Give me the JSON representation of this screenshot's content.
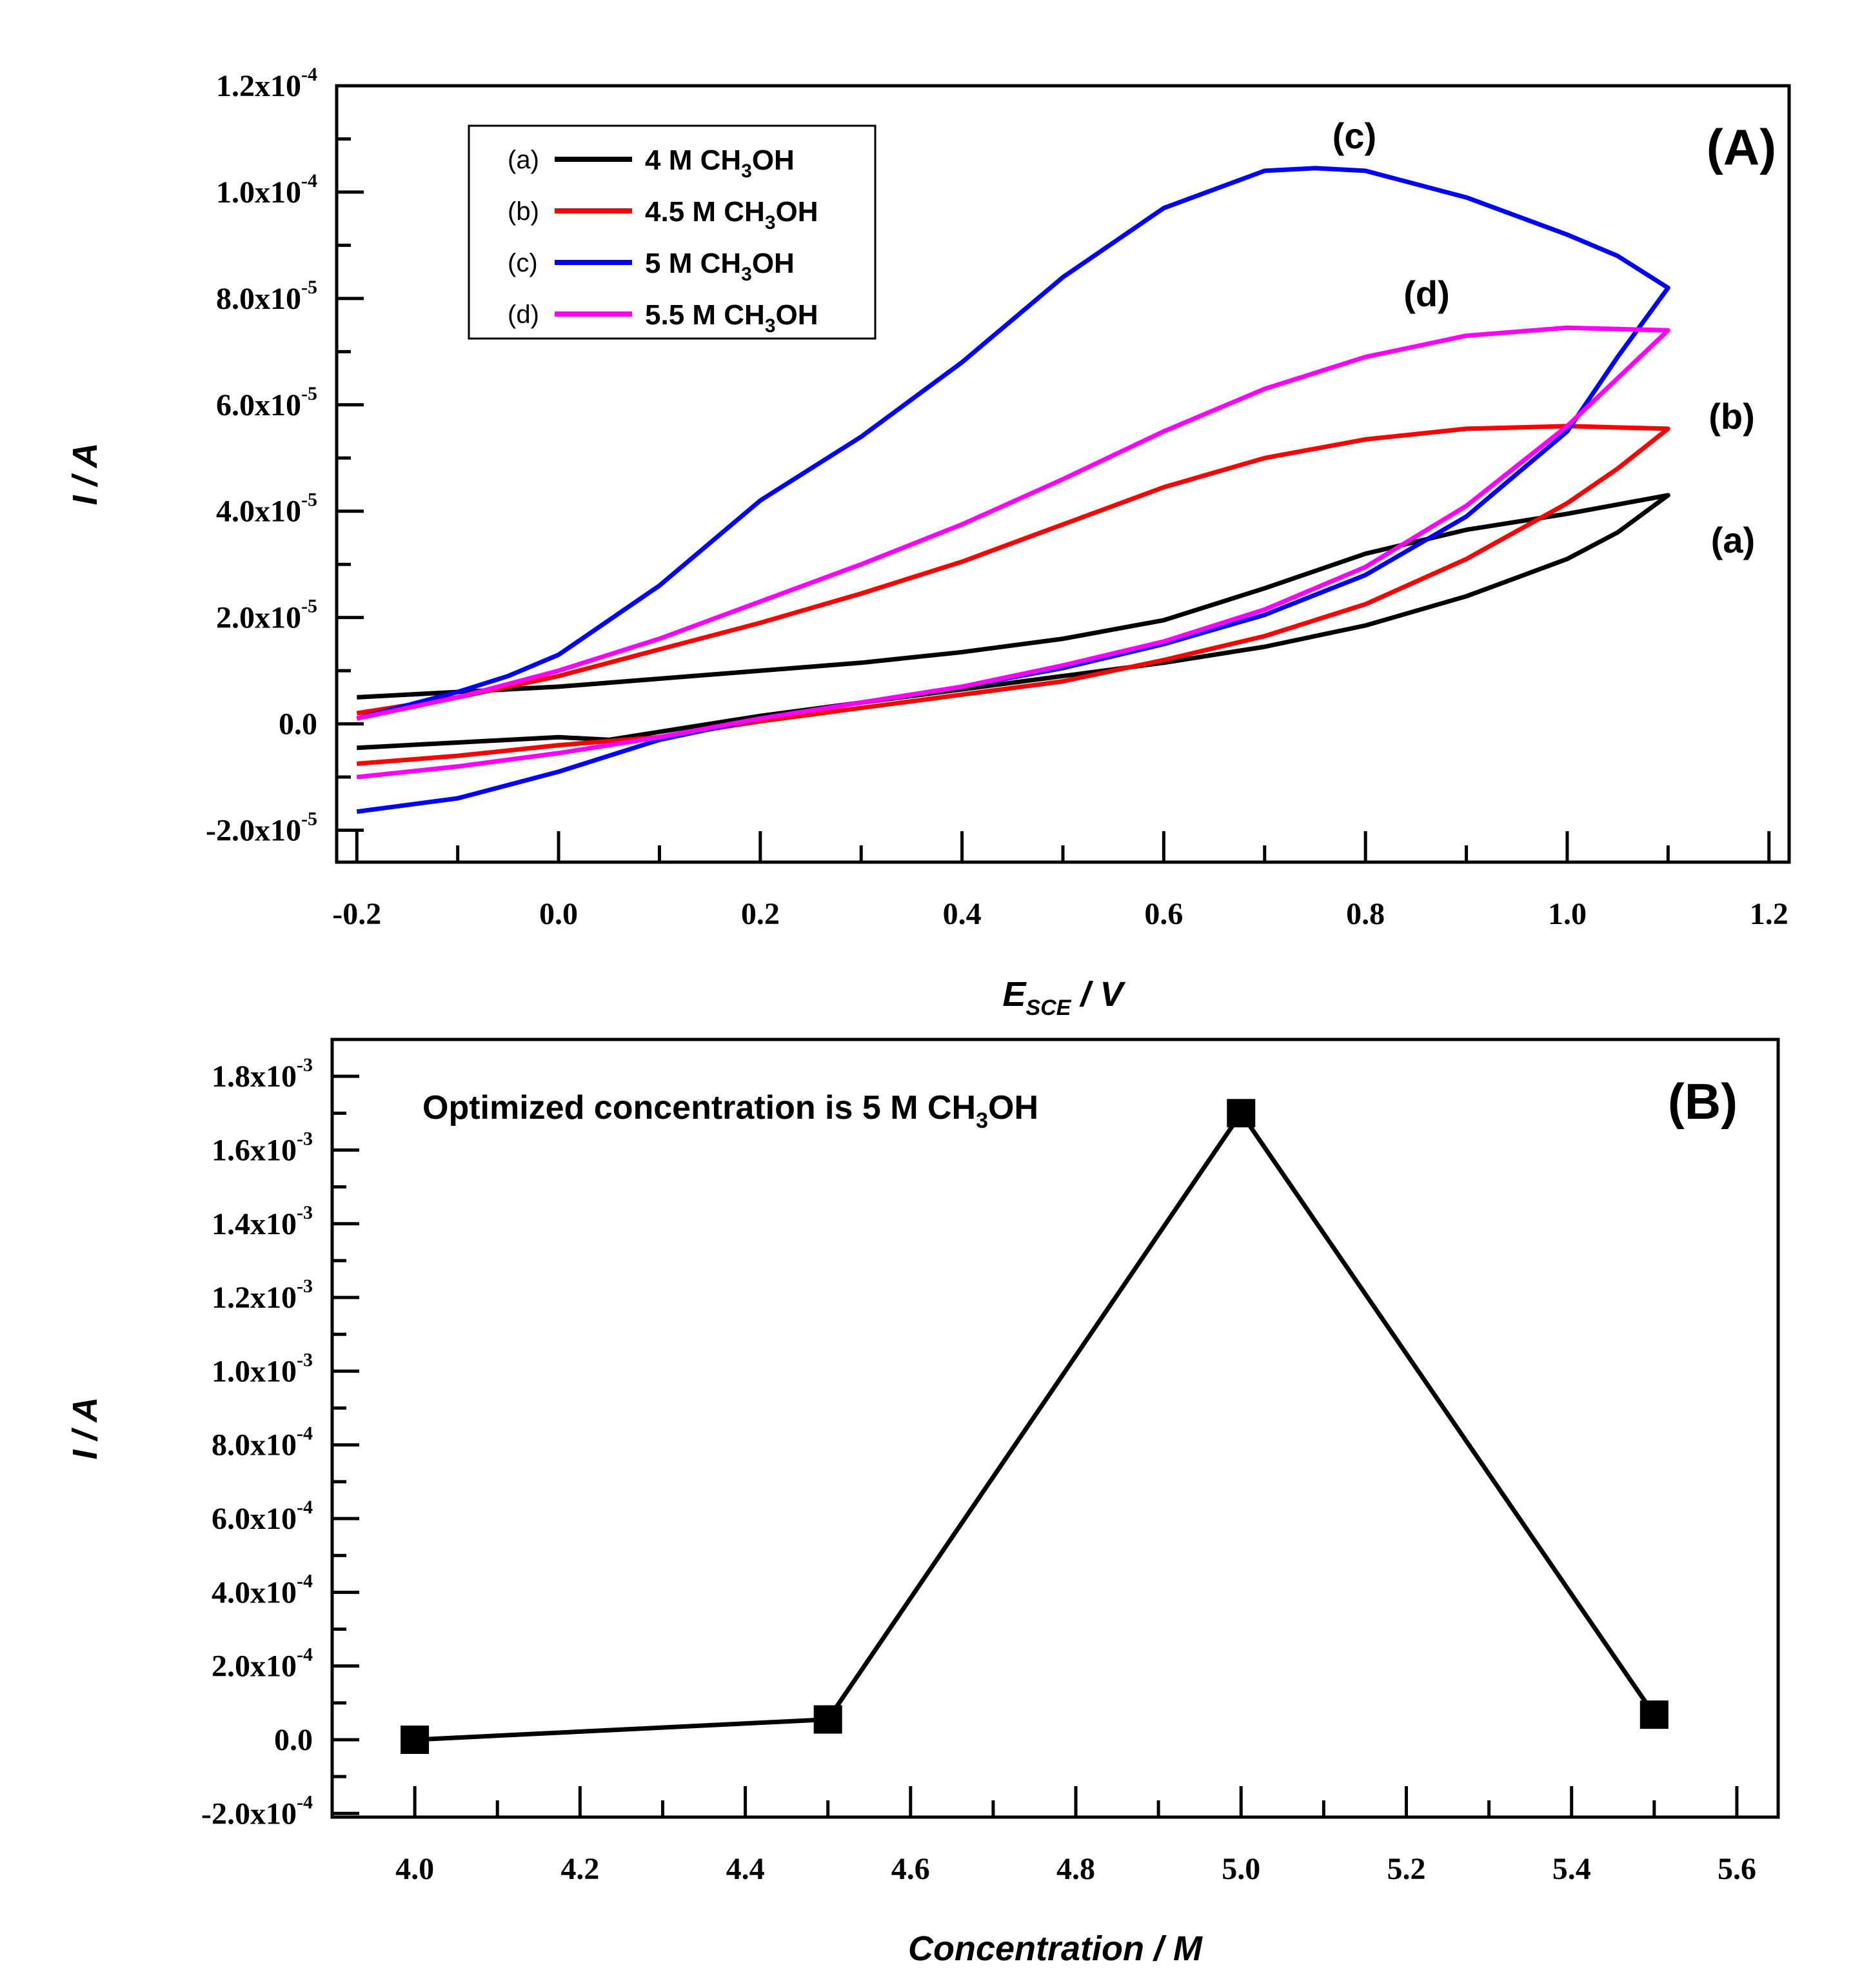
{
  "chart_data": [
    {
      "panel": "A",
      "type": "line",
      "panel_label": "(A)",
      "xlabel": {
        "main": "E",
        "sub": "SCE",
        "rest": " / V"
      },
      "ylabel": "I / A",
      "xlim": [
        -0.22,
        1.22
      ],
      "ylim": [
        -2.6e-05,
        0.00012
      ],
      "x_ticks": [
        {
          "v": -0.2,
          "label": "-0.2"
        },
        {
          "v": 0.0,
          "label": "0.0"
        },
        {
          "v": 0.2,
          "label": "0.2"
        },
        {
          "v": 0.4,
          "label": "0.4"
        },
        {
          "v": 0.6,
          "label": "0.6"
        },
        {
          "v": 0.8,
          "label": "0.8"
        },
        {
          "v": 1.0,
          "label": "1.0"
        },
        {
          "v": 1.2,
          "label": "1.2"
        }
      ],
      "y_ticks": [
        {
          "v": -2e-05,
          "mant": "-2.0x10",
          "exp": "-5"
        },
        {
          "v": 0,
          "mant": "0.0",
          "exp": ""
        },
        {
          "v": 2e-05,
          "mant": "2.0x10",
          "exp": "-5"
        },
        {
          "v": 4e-05,
          "mant": "4.0x10",
          "exp": "-5"
        },
        {
          "v": 6e-05,
          "mant": "6.0x10",
          "exp": "-5"
        },
        {
          "v": 8e-05,
          "mant": "8.0x10",
          "exp": "-5"
        },
        {
          "v": 0.0001,
          "mant": "1.0x10",
          "exp": "-4"
        },
        {
          "v": 0.00012,
          "mant": "1.2x10",
          "exp": "-4"
        }
      ],
      "series": [
        {
          "key": "(a)",
          "name_pre": "4  M CH",
          "name_sub": "3",
          "name_post": "OH",
          "color": "#000000",
          "curve_label": "(a)",
          "forward": [
            [
              -0.2,
              5e-06
            ],
            [
              -0.1,
              6e-06
            ],
            [
              0.0,
              7e-06
            ],
            [
              0.1,
              8.5e-06
            ],
            [
              0.2,
              1e-05
            ],
            [
              0.3,
              1.15e-05
            ],
            [
              0.4,
              1.35e-05
            ],
            [
              0.5,
              1.6e-05
            ],
            [
              0.6,
              1.95e-05
            ],
            [
              0.7,
              2.55e-05
            ],
            [
              0.8,
              3.2e-05
            ],
            [
              0.9,
              3.65e-05
            ],
            [
              1.0,
              3.95e-05
            ],
            [
              1.1,
              4.3e-05
            ]
          ],
          "reverse": [
            [
              1.1,
              4.3e-05
            ],
            [
              1.05,
              3.6e-05
            ],
            [
              1.0,
              3.1e-05
            ],
            [
              0.9,
              2.4e-05
            ],
            [
              0.8,
              1.85e-05
            ],
            [
              0.7,
              1.45e-05
            ],
            [
              0.6,
              1.15e-05
            ],
            [
              0.5,
              9e-06
            ],
            [
              0.4,
              6.5e-06
            ],
            [
              0.3,
              4e-06
            ],
            [
              0.2,
              1.5e-06
            ],
            [
              0.1,
              -1.5e-06
            ],
            [
              0.05,
              -3e-06
            ],
            [
              0.0,
              -2.5e-06
            ],
            [
              -0.1,
              -3.5e-06
            ],
            [
              -0.2,
              -4.5e-06
            ]
          ]
        },
        {
          "key": "(b)",
          "name_pre": "4.5  M CH",
          "name_sub": "3",
          "name_post": "OH",
          "color": "#ff0000",
          "curve_label": "(b)",
          "forward": [
            [
              -0.2,
              2e-06
            ],
            [
              -0.1,
              5e-06
            ],
            [
              0.0,
              9e-06
            ],
            [
              0.1,
              1.4e-05
            ],
            [
              0.2,
              1.9e-05
            ],
            [
              0.3,
              2.45e-05
            ],
            [
              0.4,
              3.05e-05
            ],
            [
              0.5,
              3.75e-05
            ],
            [
              0.6,
              4.45e-05
            ],
            [
              0.7,
              5e-05
            ],
            [
              0.8,
              5.35e-05
            ],
            [
              0.9,
              5.55e-05
            ],
            [
              1.0,
              5.6e-05
            ],
            [
              1.1,
              5.55e-05
            ]
          ],
          "reverse": [
            [
              1.1,
              5.55e-05
            ],
            [
              1.05,
              4.8e-05
            ],
            [
              1.0,
              4.15e-05
            ],
            [
              0.9,
              3.1e-05
            ],
            [
              0.8,
              2.25e-05
            ],
            [
              0.7,
              1.65e-05
            ],
            [
              0.6,
              1.2e-05
            ],
            [
              0.5,
              8e-06
            ],
            [
              0.4,
              5.5e-06
            ],
            [
              0.3,
              3e-06
            ],
            [
              0.2,
              5e-07
            ],
            [
              0.1,
              -2.5e-06
            ],
            [
              0.0,
              -4e-06
            ],
            [
              -0.1,
              -6e-06
            ],
            [
              -0.2,
              -7.5e-06
            ]
          ]
        },
        {
          "key": "(c)",
          "name_pre": "5  M CH",
          "name_sub": "3",
          "name_post": "OH",
          "color": "#0000ff",
          "curve_label": "(c)",
          "forward": [
            [
              -0.2,
              1e-06
            ],
            [
              -0.1,
              6e-06
            ],
            [
              -0.05,
              9e-06
            ],
            [
              0.0,
              1.3e-05
            ],
            [
              0.1,
              2.6e-05
            ],
            [
              0.2,
              4.2e-05
            ],
            [
              0.3,
              5.4e-05
            ],
            [
              0.4,
              6.8e-05
            ],
            [
              0.5,
              8.4e-05
            ],
            [
              0.6,
              9.7e-05
            ],
            [
              0.7,
              0.000104
            ],
            [
              0.75,
              0.0001045
            ],
            [
              0.8,
              0.000104
            ],
            [
              0.9,
              9.9e-05
            ],
            [
              1.0,
              9.2e-05
            ],
            [
              1.05,
              8.8e-05
            ],
            [
              1.1,
              8.2e-05
            ]
          ],
          "reverse": [
            [
              1.1,
              8.2e-05
            ],
            [
              1.05,
              6.9e-05
            ],
            [
              1.0,
              5.5e-05
            ],
            [
              0.9,
              3.9e-05
            ],
            [
              0.8,
              2.8e-05
            ],
            [
              0.7,
              2.05e-05
            ],
            [
              0.6,
              1.5e-05
            ],
            [
              0.5,
              1.05e-05
            ],
            [
              0.4,
              7e-06
            ],
            [
              0.3,
              4e-06
            ],
            [
              0.2,
              1e-06
            ],
            [
              0.1,
              -3e-06
            ],
            [
              0.0,
              -9e-06
            ],
            [
              -0.1,
              -1.4e-05
            ],
            [
              -0.2,
              -1.65e-05
            ]
          ]
        },
        {
          "key": "(d)",
          "name_pre": "5.5  M CH",
          "name_sub": "3",
          "name_post": "OH",
          "color": "#ff00ff",
          "curve_label": "(d)",
          "forward": [
            [
              -0.2,
              1e-06
            ],
            [
              -0.1,
              5e-06
            ],
            [
              0.0,
              1e-05
            ],
            [
              0.1,
              1.6e-05
            ],
            [
              0.2,
              2.3e-05
            ],
            [
              0.3,
              3e-05
            ],
            [
              0.4,
              3.75e-05
            ],
            [
              0.5,
              4.6e-05
            ],
            [
              0.6,
              5.5e-05
            ],
            [
              0.7,
              6.3e-05
            ],
            [
              0.8,
              6.9e-05
            ],
            [
              0.9,
              7.3e-05
            ],
            [
              1.0,
              7.45e-05
            ],
            [
              1.1,
              7.4e-05
            ]
          ],
          "reverse": [
            [
              1.1,
              7.4e-05
            ],
            [
              1.05,
              6.5e-05
            ],
            [
              1.0,
              5.6e-05
            ],
            [
              0.9,
              4.1e-05
            ],
            [
              0.8,
              2.95e-05
            ],
            [
              0.7,
              2.15e-05
            ],
            [
              0.6,
              1.55e-05
            ],
            [
              0.5,
              1.1e-05
            ],
            [
              0.4,
              7e-06
            ],
            [
              0.3,
              4e-06
            ],
            [
              0.2,
              1e-06
            ],
            [
              0.1,
              -2.5e-06
            ],
            [
              0.0,
              -5.5e-06
            ],
            [
              -0.1,
              -8e-06
            ],
            [
              -0.2,
              -1e-05
            ]
          ]
        }
      ]
    },
    {
      "panel": "B",
      "type": "line",
      "panel_label": "(B)",
      "xlabel": "Concentration / M",
      "ylabel": "I / A",
      "xlim": [
        3.9,
        5.65
      ],
      "ylim": [
        -0.00021,
        0.0019
      ],
      "annotation": {
        "pre": "Optimized concentration is 5 M CH",
        "sub": "3",
        "post": "OH"
      },
      "x_ticks": [
        {
          "v": 4.0,
          "label": "4.0"
        },
        {
          "v": 4.2,
          "label": "4.2"
        },
        {
          "v": 4.4,
          "label": "4.4"
        },
        {
          "v": 4.6,
          "label": "4.6"
        },
        {
          "v": 4.8,
          "label": "4.8"
        },
        {
          "v": 5.0,
          "label": "5.0"
        },
        {
          "v": 5.2,
          "label": "5.2"
        },
        {
          "v": 5.4,
          "label": "5.4"
        },
        {
          "v": 5.6,
          "label": "5.6"
        }
      ],
      "y_ticks": [
        {
          "v": -0.0002,
          "mant": "-2.0x10",
          "exp": "-4"
        },
        {
          "v": 0,
          "mant": "0.0",
          "exp": ""
        },
        {
          "v": 0.0002,
          "mant": "2.0x10",
          "exp": "-4"
        },
        {
          "v": 0.0004,
          "mant": "4.0x10",
          "exp": "-4"
        },
        {
          "v": 0.0006,
          "mant": "6.0x10",
          "exp": "-4"
        },
        {
          "v": 0.0008,
          "mant": "8.0x10",
          "exp": "-4"
        },
        {
          "v": 0.001,
          "mant": "1.0x10",
          "exp": "-3"
        },
        {
          "v": 0.0012,
          "mant": "1.2x10",
          "exp": "-3"
        },
        {
          "v": 0.0014,
          "mant": "1.4x10",
          "exp": "-3"
        },
        {
          "v": 0.0016,
          "mant": "1.6x10",
          "exp": "-3"
        },
        {
          "v": 0.0018,
          "mant": "1.8x10",
          "exp": "-3"
        }
      ],
      "x": [
        4.0,
        4.5,
        5.0,
        5.5
      ],
      "y": [
        0.0,
        5.5e-05,
        0.0017,
        6.8e-05
      ],
      "color": "#000000"
    }
  ]
}
